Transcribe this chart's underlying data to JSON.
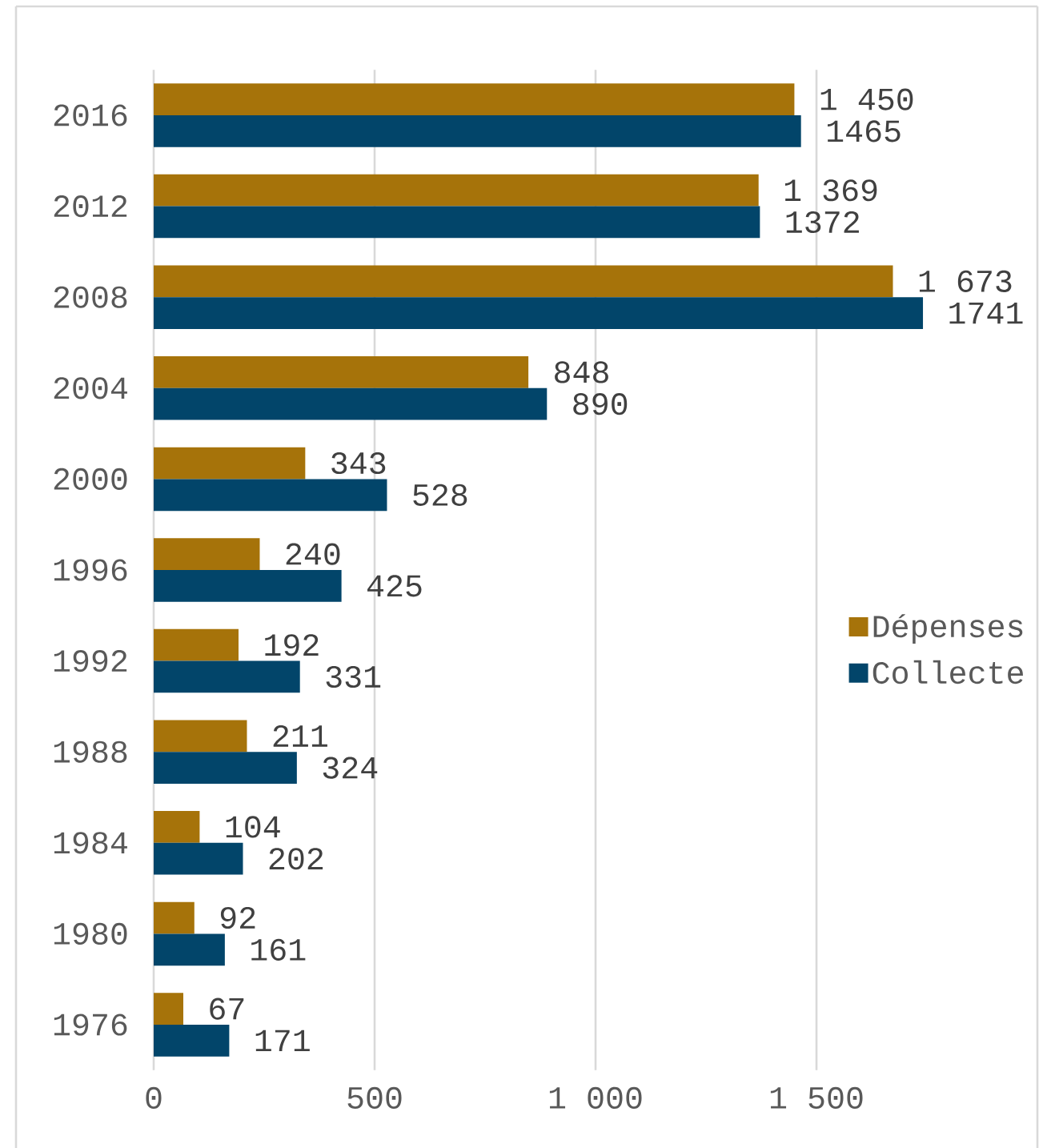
{
  "chart_data": {
    "type": "bar",
    "orientation": "horizontal",
    "categories": [
      "2016",
      "2012",
      "2008",
      "2004",
      "2000",
      "1996",
      "1992",
      "1988",
      "1984",
      "1980",
      "1976"
    ],
    "series": [
      {
        "name": "Dépenses",
        "color": "#a6730a",
        "values": [
          1450,
          1369,
          1673,
          848,
          343,
          240,
          192,
          211,
          104,
          92,
          67
        ],
        "value_labels": [
          "1 450",
          "1 369",
          "1 673",
          "848",
          "343",
          "240",
          "192",
          "211",
          "104",
          "92",
          "67"
        ]
      },
      {
        "name": "Collecte",
        "color": "#02456a",
        "values": [
          1465,
          1372,
          1741,
          890,
          528,
          425,
          331,
          324,
          202,
          161,
          171
        ],
        "value_labels": [
          "1465",
          "1372",
          "1741",
          "890",
          "528",
          "425",
          "331",
          "324",
          "202",
          "161",
          "171"
        ]
      }
    ],
    "xlim": [
      0,
      2000
    ],
    "xticks": [
      0,
      500,
      {
        "value": 1000,
        "label": "1 000"
      },
      {
        "value": 1500,
        "label": "1 500"
      }
    ],
    "grid": "x",
    "legend": "right"
  }
}
